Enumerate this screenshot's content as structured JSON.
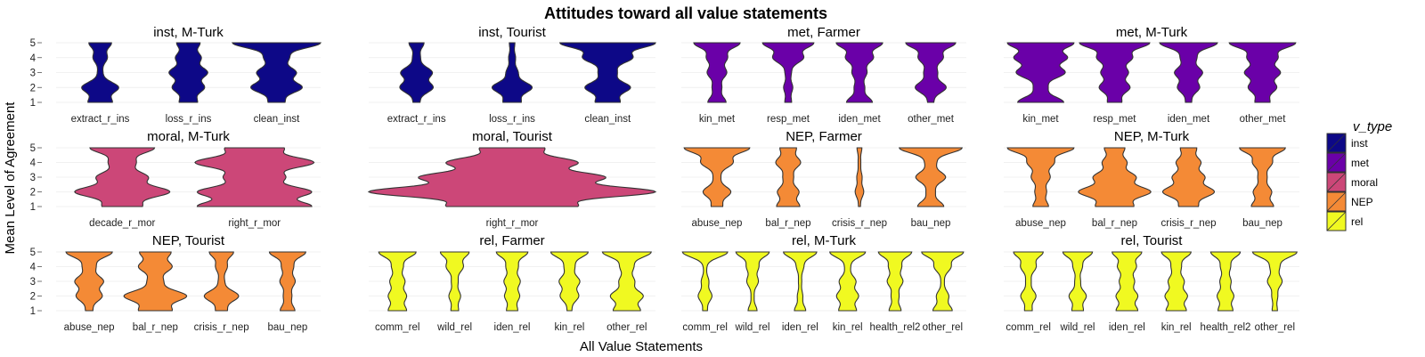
{
  "chart_data": {
    "type": "violin",
    "title": "Attitudes toward all value statements",
    "xlabel": "All Value Statements",
    "ylabel": "Mean Level of Agreement",
    "y_ticks": [
      "1",
      "2",
      "3",
      "4",
      "5"
    ],
    "ylim": [
      1,
      5
    ],
    "legend": {
      "title": "v_type",
      "placement": "right",
      "items": [
        {
          "label": "inst",
          "color": "#0d0887"
        },
        {
          "label": "met",
          "color": "#6a00a8"
        },
        {
          "label": "moral",
          "color": "#cc4778"
        },
        {
          "label": "NEP",
          "color": "#f48a36"
        },
        {
          "label": "rel",
          "color": "#f0f921"
        }
      ]
    },
    "rows": [
      {
        "panels": [
          {
            "label": "inst, M-Turk",
            "type": "inst",
            "categories": [
              "extract_r_ins",
              "loss_r_ins",
              "clean_inst"
            ],
            "max_width": [
              0.42,
              0.44,
              1.0
            ]
          },
          {
            "label": "inst, Tourist",
            "type": "inst",
            "categories": [
              "extract_r_ins",
              "loss_r_ins",
              "clean_inst"
            ],
            "max_width": [
              0.35,
              0.42,
              1.0
            ]
          },
          {
            "label": "met, Farmer",
            "type": "met",
            "categories": [
              "kin_met",
              "resp_met",
              "iden_met",
              "other_met"
            ],
            "max_width": [
              0.65,
              0.72,
              0.65,
              0.7
            ]
          },
          {
            "label": "met, M-Turk",
            "type": "met",
            "categories": [
              "kin_met",
              "resp_met",
              "iden_met",
              "other_met"
            ],
            "max_width": [
              0.9,
              0.95,
              0.78,
              0.9
            ]
          }
        ]
      },
      {
        "panels": [
          {
            "label": "moral, M-Turk",
            "type": "moral",
            "categories": [
              "decade_r_mor",
              "right_r_mor"
            ],
            "max_width": [
              0.72,
              0.9
            ]
          },
          {
            "label": "moral, Tourist",
            "type": "moral",
            "categories": [
              "right_r_mor"
            ],
            "max_width": [
              1.0
            ]
          },
          {
            "label": "NEP, Farmer",
            "type": "NEP",
            "categories": [
              "abuse_nep",
              "bal_r_nep",
              "crisis_r_nep",
              "bau_nep"
            ],
            "max_width": [
              0.92,
              0.35,
              0.12,
              0.88
            ]
          },
          {
            "label": "NEP, M-Turk",
            "type": "NEP",
            "categories": [
              "abuse_nep",
              "bal_r_nep",
              "crisis_r_nep",
              "bau_nep"
            ],
            "max_width": [
              0.9,
              0.98,
              0.7,
              0.62
            ]
          }
        ]
      },
      {
        "panels": [
          {
            "label": "NEP, Tourist",
            "type": "NEP",
            "categories": [
              "abuse_nep",
              "bal_r_nep",
              "crisis_r_nep",
              "bau_nep"
            ],
            "max_width": [
              0.7,
              0.95,
              0.52,
              0.55
            ]
          },
          {
            "label": "rel, Farmer",
            "type": "rel",
            "categories": [
              "comm_rel",
              "wild_rel",
              "iden_rel",
              "kin_rel",
              "other_rel"
            ],
            "max_width": [
              0.65,
              0.5,
              0.55,
              0.65,
              0.85
            ]
          },
          {
            "label": "rel, M-Turk",
            "type": "rel",
            "categories": [
              "comm_rel",
              "wild_rel",
              "iden_rel",
              "kin_rel",
              "health_rel2",
              "other_rel"
            ],
            "max_width": [
              0.95,
              0.7,
              0.7,
              0.75,
              0.7,
              0.88
            ]
          },
          {
            "label": "rel, Tourist",
            "type": "rel",
            "categories": [
              "comm_rel",
              "wild_rel",
              "iden_rel",
              "kin_rel",
              "health_rel2",
              "other_rel"
            ],
            "max_width": [
              0.6,
              0.6,
              0.6,
              0.6,
              0.6,
              0.9
            ]
          }
        ]
      }
    ]
  }
}
